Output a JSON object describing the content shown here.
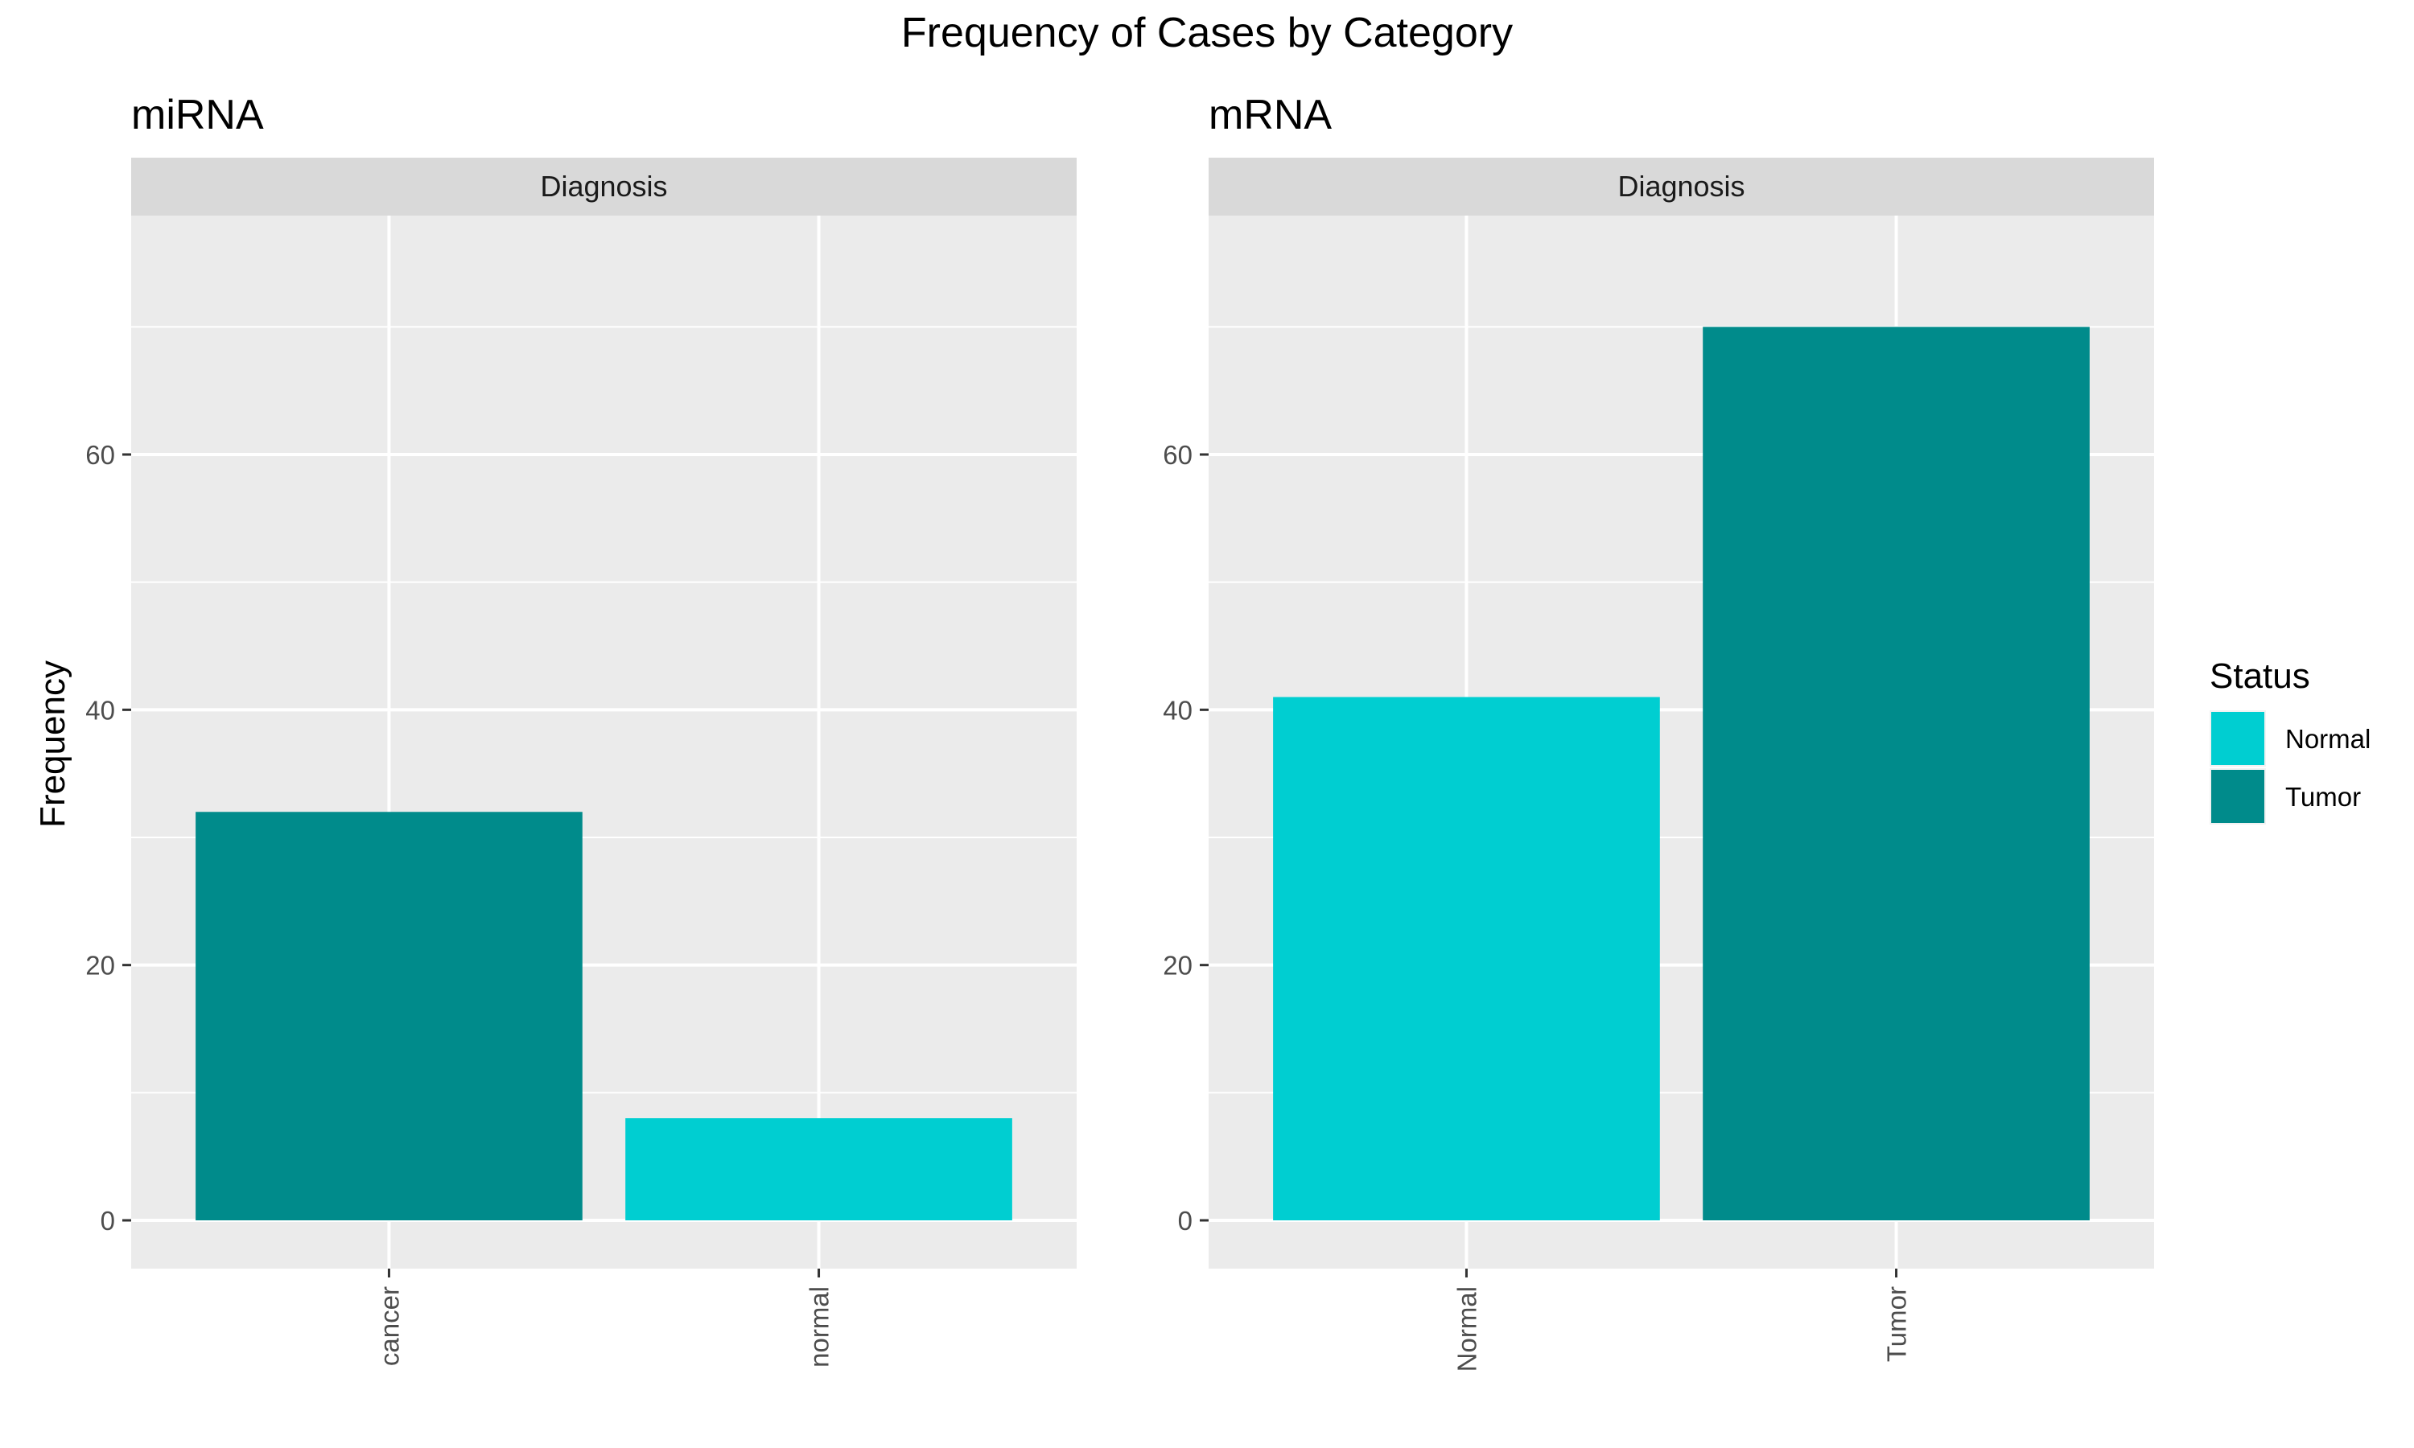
{
  "chart_data": {
    "type": "bar",
    "title": "Frequency of Cases by Category",
    "ylabel": "Frequency",
    "ylim": [
      0,
      78
    ],
    "yticks": [
      0,
      20,
      40,
      60
    ],
    "grid": true,
    "legend": {
      "title": "Status",
      "placement": "right",
      "entries": [
        {
          "label": "Normal",
          "color": "#00CED1"
        },
        {
          "label": "Tumor",
          "color": "#008B8B"
        }
      ]
    },
    "panels": [
      {
        "subtitle": "miRNA",
        "strip": "Diagnosis",
        "categories": [
          "cancer",
          "normal"
        ],
        "values": [
          32,
          8
        ],
        "status": [
          "Tumor",
          "Normal"
        ]
      },
      {
        "subtitle": "mRNA",
        "strip": "Diagnosis",
        "categories": [
          "Normal",
          "Tumor"
        ],
        "values": [
          41,
          70
        ],
        "status": [
          "Normal",
          "Tumor"
        ]
      }
    ]
  }
}
